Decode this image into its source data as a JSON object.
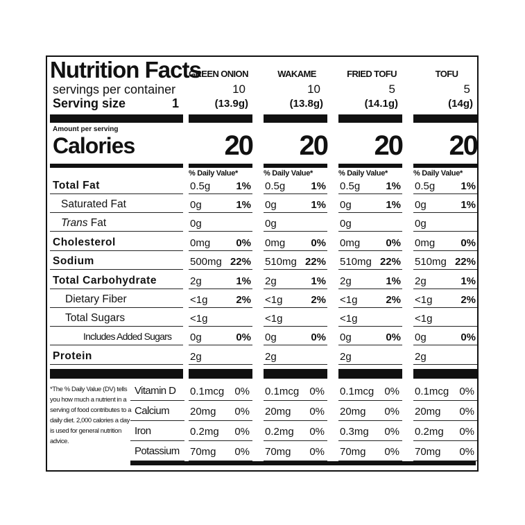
{
  "header": {
    "title": "Nutrition Facts",
    "servings_label": "servings per container",
    "serving_size_label": "Serving size",
    "serving_size_count": "1",
    "amount_per_serving": "Amount per serving",
    "calories_label": "Calories",
    "daily_value_header": "% Daily Value*"
  },
  "columns": [
    {
      "name": "GREEN ONION",
      "servings": "10",
      "size": "(13.9g)",
      "calories": "20"
    },
    {
      "name": "WAKAME",
      "servings": "10",
      "size": "(13.8g)",
      "calories": "20"
    },
    {
      "name": "FRIED TOFU",
      "servings": "5",
      "size": "(14.1g)",
      "calories": "20"
    },
    {
      "name": "TOFU",
      "servings": "5",
      "size": "(14g)",
      "calories": "20"
    }
  ],
  "nutrients": [
    {
      "label": "Total Fat",
      "style": "bold",
      "values": [
        [
          "0.5g",
          "1%"
        ],
        [
          "0.5g",
          "1%"
        ],
        [
          "0.5g",
          "1%"
        ],
        [
          "0.5g",
          "1%"
        ]
      ]
    },
    {
      "label": "Saturated Fat",
      "style": "sub",
      "values": [
        [
          "0g",
          "1%"
        ],
        [
          "0g",
          "1%"
        ],
        [
          "0g",
          "1%"
        ],
        [
          "0g",
          "1%"
        ]
      ]
    },
    {
      "label_italic": "Trans",
      "label_rest": " Fat",
      "style": "sub",
      "values": [
        [
          "0g",
          ""
        ],
        [
          "0g",
          ""
        ],
        [
          "0g",
          ""
        ],
        [
          "0g",
          ""
        ]
      ]
    },
    {
      "label": "Cholesterol",
      "style": "bold",
      "values": [
        [
          "0mg",
          "0%"
        ],
        [
          "0mg",
          "0%"
        ],
        [
          "0mg",
          "0%"
        ],
        [
          "0mg",
          "0%"
        ]
      ]
    },
    {
      "label": "Sodium",
      "style": "bold",
      "values": [
        [
          "500mg",
          "22%"
        ],
        [
          "510mg",
          "22%"
        ],
        [
          "510mg",
          "22%"
        ],
        [
          "510mg",
          "22%"
        ]
      ]
    },
    {
      "label": "Total Carbohydrate",
      "style": "bold",
      "values": [
        [
          "2g",
          "1%"
        ],
        [
          "2g",
          "1%"
        ],
        [
          "2g",
          "1%"
        ],
        [
          "2g",
          "1%"
        ]
      ]
    },
    {
      "label": "Dietary Fiber",
      "style": "sub2",
      "values": [
        [
          "<1g",
          "2%"
        ],
        [
          "<1g",
          "2%"
        ],
        [
          "<1g",
          "2%"
        ],
        [
          "<1g",
          "2%"
        ]
      ]
    },
    {
      "label": "Total Sugars",
      "style": "sub2",
      "values": [
        [
          "<1g",
          ""
        ],
        [
          "<1g",
          ""
        ],
        [
          "<1g",
          ""
        ],
        [
          "<1g",
          ""
        ]
      ]
    },
    {
      "label": "Includes Added Sugars",
      "style": "sub3",
      "values": [
        [
          "0g",
          "0%"
        ],
        [
          "0g",
          "0%"
        ],
        [
          "0g",
          "0%"
        ],
        [
          "0g",
          "0%"
        ]
      ]
    },
    {
      "label": "Protein",
      "style": "bold",
      "values": [
        [
          "2g",
          ""
        ],
        [
          "2g",
          ""
        ],
        [
          "2g",
          ""
        ],
        [
          "2g",
          ""
        ]
      ]
    }
  ],
  "vitamins": [
    {
      "label": "Vitamin D",
      "values": [
        [
          "0.1mcg",
          "0%"
        ],
        [
          "0.1mcg",
          "0%"
        ],
        [
          "0.1mcg",
          "0%"
        ],
        [
          "0.1mcg",
          "0%"
        ]
      ]
    },
    {
      "label": "Calcium",
      "values": [
        [
          "20mg",
          "0%"
        ],
        [
          "20mg",
          "0%"
        ],
        [
          "20mg",
          "0%"
        ],
        [
          "20mg",
          "0%"
        ]
      ]
    },
    {
      "label": "Iron",
      "values": [
        [
          "0.2mg",
          "0%"
        ],
        [
          "0.2mg",
          "0%"
        ],
        [
          "0.3mg",
          "0%"
        ],
        [
          "0.2mg",
          "0%"
        ]
      ]
    },
    {
      "label": "Potassium",
      "values": [
        [
          "70mg",
          "0%"
        ],
        [
          "70mg",
          "0%"
        ],
        [
          "70mg",
          "0%"
        ],
        [
          "70mg",
          "0%"
        ]
      ]
    }
  ],
  "footnote": "*The % Daily Value (DV) tells you how much a nutrient in a serving of food contributes to a daily diet. 2,000 calories a day is used for general nutrition advice."
}
